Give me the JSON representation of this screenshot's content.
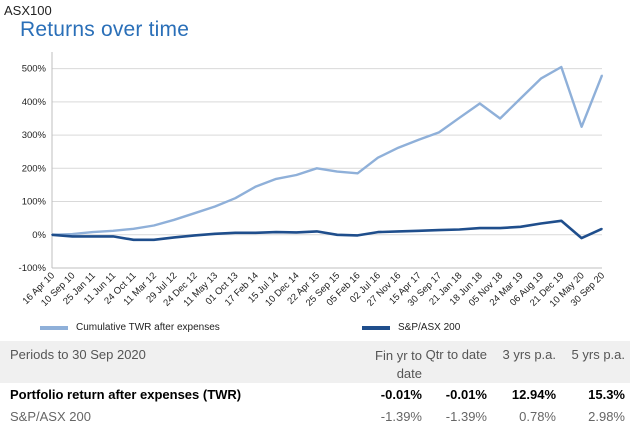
{
  "header": {
    "label": "ASX100",
    "title": "Returns over time"
  },
  "chart_data": {
    "type": "line",
    "ylim": [
      -100,
      550
    ],
    "yticks": [
      -100,
      0,
      100,
      200,
      300,
      400,
      500
    ],
    "ytick_labels": [
      "-100%",
      "0%",
      "100%",
      "200%",
      "300%",
      "400%",
      "500%"
    ],
    "grid": true,
    "legend_position": "bottom",
    "x": [
      "16 Apr 10",
      "10 Sep 10",
      "25 Jan 11",
      "11 Jun 11",
      "24 Oct 11",
      "11 Mar 12",
      "29 Jul 12",
      "24 Dec 12",
      "11 May 13",
      "01 Oct 13",
      "17 Feb 14",
      "15 Jul 14",
      "10 Dec 14",
      "22 Apr 15",
      "25 Sep 15",
      "05 Feb 16",
      "02 Jul 16",
      "27 Nov 16",
      "15 Apr 17",
      "30 Sep 17",
      "21 Jan 18",
      "18 Jun 18",
      "05 Nov 18",
      "24 Mar 19",
      "06 Aug 19",
      "21 Dec 19",
      "10 May 20",
      "30 Sep 20"
    ],
    "series": [
      {
        "name": "Cumulative TWR after expenses",
        "color": "#8fb0d9",
        "values": [
          0,
          2,
          8,
          12,
          18,
          28,
          45,
          65,
          85,
          110,
          145,
          168,
          180,
          200,
          190,
          185,
          232,
          262,
          286,
          308,
          352,
          395,
          350,
          410,
          470,
          505,
          325,
          480
        ]
      },
      {
        "name": "S&P/ASX 200",
        "color": "#1f4e8c",
        "values": [
          0,
          -5,
          -5,
          -5,
          -15,
          -15,
          -8,
          -2,
          3,
          6,
          6,
          8,
          7,
          10,
          0,
          -2,
          8,
          10,
          12,
          14,
          16,
          20,
          20,
          24,
          34,
          42,
          -10,
          18
        ]
      }
    ]
  },
  "table": {
    "headers": [
      "Periods to 30 Sep 2020",
      "Fin yr to date",
      "Qtr to date",
      "3 yrs p.a.",
      "5 yrs p.a."
    ],
    "rows": [
      {
        "label": "Portfolio return after expenses (TWR)",
        "values": [
          "-0.01%",
          "-0.01%",
          "12.94%",
          "15.3%"
        ]
      },
      {
        "label": "S&P/ASX 200",
        "values": [
          "-1.39%",
          "-1.39%",
          "0.78%",
          "2.98%"
        ]
      }
    ]
  }
}
